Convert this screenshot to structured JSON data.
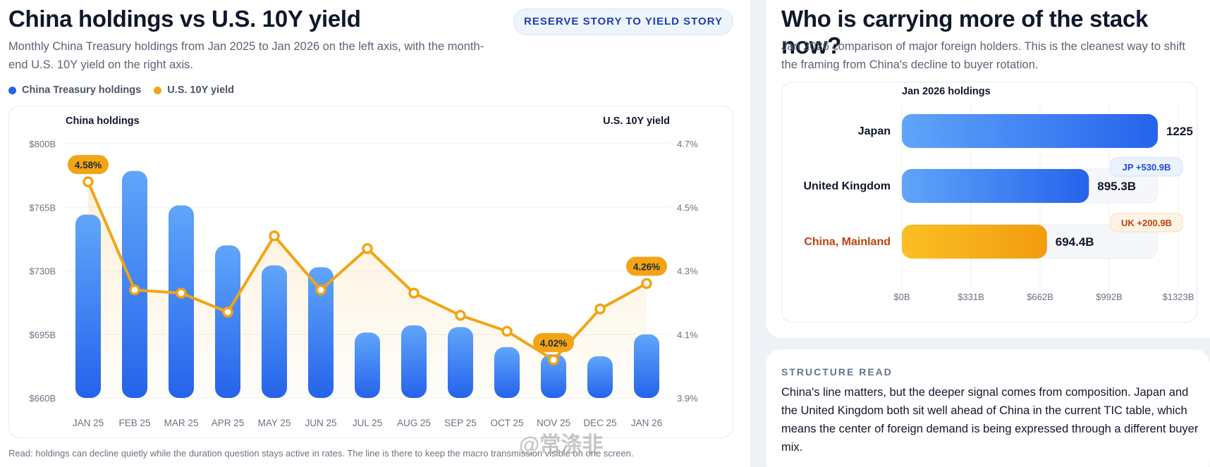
{
  "left": {
    "title": "China holdings vs U.S. 10Y yield",
    "button_label": "RESERVE STORY TO YIELD STORY",
    "subtitle": "Monthly China Treasury holdings from Jan 2025 to Jan 2026 on the left axis, with the month-end U.S. 10Y yield on the right axis.",
    "legend": [
      {
        "label": "China Treasury holdings",
        "color": "#2563eb"
      },
      {
        "label": "U.S. 10Y yield",
        "color": "#f2a414"
      }
    ],
    "read_note": "Read: holdings can decline quietly while the duration question stays active in rates. The line is there to keep the macro transmission visible on one screen."
  },
  "right": {
    "title": "Who is carrying more of the stack now?",
    "subtitle": "Jan 2026 comparison of major foreign holders. This is the cleanest way to shift the framing from China's decline to buyer rotation.",
    "structure_label": "STRUCTURE READ",
    "structure_text": "China's line matters, but the deeper signal comes from composition. Japan and the United Kingdom both sit well ahead of China in the current TIC table, which means the center of foreign demand is being expressed through a different buyer mix."
  },
  "watermark": "@常涤非",
  "chart_data": [
    {
      "type": "bar",
      "title": "",
      "y_left_label": "China holdings",
      "y_right_label": "U.S. 10Y yield",
      "categories": [
        "JAN 25",
        "FEB 25",
        "MAR 25",
        "APR 25",
        "MAY 25",
        "JUN 25",
        "JUL 25",
        "AUG 25",
        "SEP 25",
        "OCT 25",
        "NOV 25",
        "DEC 25",
        "JAN 26"
      ],
      "y_left_ticks": [
        "$800B",
        "$765B",
        "$730B",
        "$695B",
        "$660B"
      ],
      "y_left_range": [
        660,
        800
      ],
      "y_right_ticks": [
        "4.7%",
        "4.5%",
        "4.3%",
        "4.1%",
        "3.9%"
      ],
      "y_right_range": [
        3.9,
        4.7
      ],
      "series": [
        {
          "name": "China Treasury holdings",
          "unit": "$B",
          "type": "bar",
          "color": "#2563eb",
          "values": [
            761,
            785,
            766,
            744,
            733,
            732,
            696,
            700,
            699,
            688,
            684,
            683,
            695
          ]
        },
        {
          "name": "U.S. 10Y yield",
          "unit": "%",
          "type": "line",
          "color": "#f2a414",
          "values": [
            4.58,
            4.24,
            4.23,
            4.17,
            4.41,
            4.24,
            4.37,
            4.23,
            4.16,
            4.11,
            4.02,
            4.18,
            4.26
          ]
        }
      ],
      "annotations": [
        {
          "index": 0,
          "label": "4.58%"
        },
        {
          "index": 10,
          "label": "4.02%"
        },
        {
          "index": 12,
          "label": "4.26%"
        }
      ]
    },
    {
      "type": "bar",
      "orientation": "horizontal",
      "title": "Jan 2026 holdings",
      "categories": [
        "Japan",
        "United Kingdom",
        "China, Mainland"
      ],
      "values": [
        1225,
        895.3,
        694.4
      ],
      "value_labels": [
        "1225",
        "895.3B",
        "694.4B"
      ],
      "colors": [
        "#2563eb",
        "#2563eb",
        "#f2a414"
      ],
      "x_ticks": [
        "$0B",
        "$331B",
        "$662B",
        "$992B",
        "$1323B"
      ],
      "xlim": [
        0,
        1323
      ],
      "gap_badges": [
        {
          "index": 1,
          "label": "JP +530.9B"
        },
        {
          "index": 2,
          "label": "UK +200.9B"
        }
      ]
    }
  ]
}
